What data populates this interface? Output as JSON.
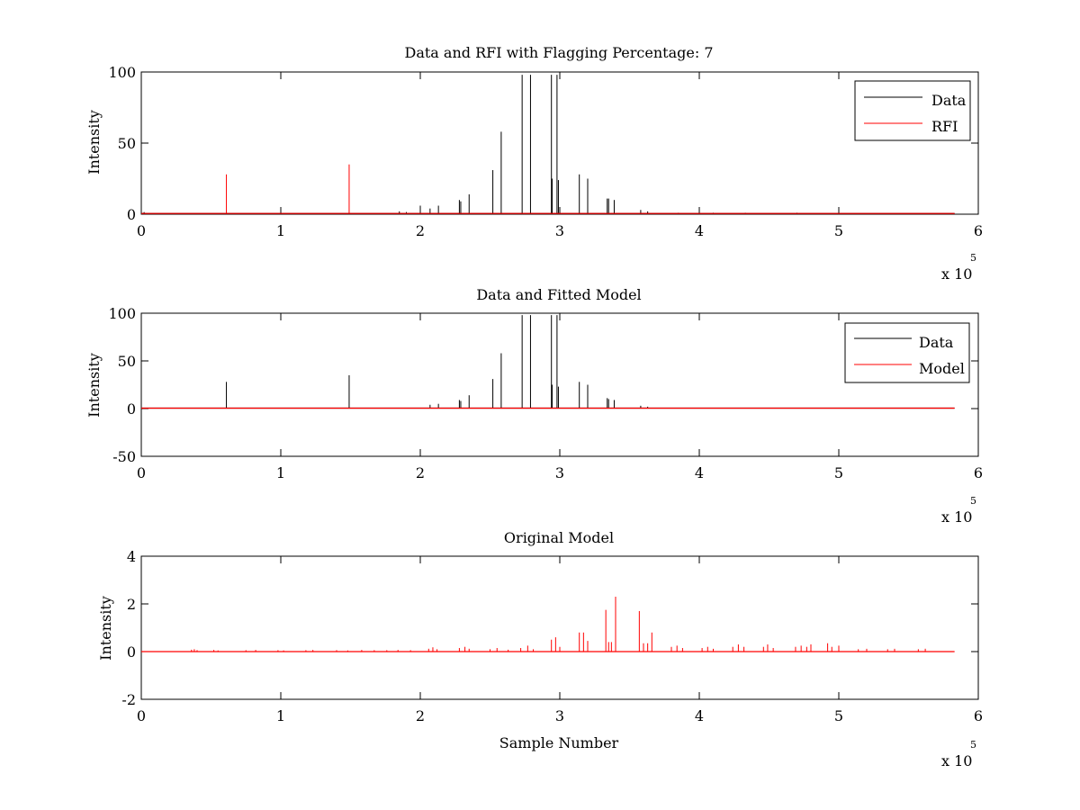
{
  "chart_data": [
    {
      "type": "line",
      "title": "Data and RFI with Flagging Percentage: 7",
      "xlabel": "",
      "ylabel": "Intensity",
      "xlim": [
        0,
        600000
      ],
      "ylim": [
        0,
        100
      ],
      "xticks": [
        0,
        100000,
        200000,
        300000,
        400000,
        500000,
        600000
      ],
      "xtick_labels": [
        "0",
        "1",
        "2",
        "3",
        "4",
        "5",
        "6"
      ],
      "yticks": [
        0,
        50,
        100
      ],
      "ytick_labels": [
        "0",
        "50",
        "100"
      ],
      "x_exponent": {
        "base": "x 10",
        "power": "5"
      },
      "grid": false,
      "legend": "top-right",
      "series": [
        {
          "name": "Data",
          "color": "#000000",
          "baseline": 0.5,
          "x_max": 583000,
          "spikes": [
            [
              2000,
              1.5
            ],
            [
              100000,
              5
            ],
            [
              185000,
              2
            ],
            [
              190000,
              1.5
            ],
            [
              200000,
              6
            ],
            [
              207000,
              4
            ],
            [
              213000,
              6
            ],
            [
              228000,
              10
            ],
            [
              229000,
              9
            ],
            [
              235000,
              14
            ],
            [
              252000,
              31
            ],
            [
              258000,
              58
            ],
            [
              273000,
              98
            ],
            [
              279000,
              98
            ],
            [
              294000,
              98
            ],
            [
              294500,
              25
            ],
            [
              298000,
              98
            ],
            [
              299000,
              24
            ],
            [
              314000,
              28
            ],
            [
              320000,
              25
            ],
            [
              334000,
              11
            ],
            [
              335000,
              11
            ],
            [
              339000,
              10
            ],
            [
              358000,
              3
            ],
            [
              363000,
              2
            ],
            [
              385000,
              1
            ],
            [
              410000,
              1
            ],
            [
              433000,
              1
            ],
            [
              470000,
              1
            ]
          ]
        },
        {
          "name": "RFI",
          "color": "#ff0000",
          "baseline": 0.5,
          "x_max": 583000,
          "spikes": [
            [
              61000,
              28
            ],
            [
              149000,
              35
            ]
          ]
        }
      ]
    },
    {
      "type": "line",
      "title": "Data and Fitted Model",
      "xlabel": "",
      "ylabel": "Intensity",
      "xlim": [
        0,
        600000
      ],
      "ylim": [
        -50,
        100
      ],
      "xticks": [
        0,
        100000,
        200000,
        300000,
        400000,
        500000,
        600000
      ],
      "xtick_labels": [
        "0",
        "1",
        "2",
        "3",
        "4",
        "5",
        "6"
      ],
      "yticks": [
        -50,
        0,
        50,
        100
      ],
      "ytick_labels": [
        "-50",
        "0",
        "50",
        "100"
      ],
      "x_exponent": {
        "base": "x 10",
        "power": "5"
      },
      "grid": false,
      "legend": "top-right",
      "series": [
        {
          "name": "Data",
          "color": "#000000",
          "baseline": 0.5,
          "x_max": 583000,
          "spikes": [
            [
              61000,
              28
            ],
            [
              149000,
              35
            ],
            [
              207000,
              4
            ],
            [
              213000,
              5
            ],
            [
              228000,
              9
            ],
            [
              229000,
              8
            ],
            [
              235000,
              14
            ],
            [
              252000,
              31
            ],
            [
              258000,
              58
            ],
            [
              273000,
              98
            ],
            [
              279000,
              98
            ],
            [
              294000,
              98
            ],
            [
              294500,
              25
            ],
            [
              298000,
              98
            ],
            [
              299000,
              23
            ],
            [
              314000,
              28
            ],
            [
              320000,
              25
            ],
            [
              334000,
              11
            ],
            [
              335000,
              10
            ],
            [
              339000,
              9
            ],
            [
              358000,
              3
            ],
            [
              363000,
              2
            ]
          ]
        },
        {
          "name": "Model",
          "color": "#ff0000",
          "baseline": 0.5,
          "x_max": 583000,
          "spikes": []
        }
      ]
    },
    {
      "type": "line",
      "title": "Original Model",
      "xlabel": "Sample Number",
      "ylabel": "Intensity",
      "xlim": [
        0,
        600000
      ],
      "ylim": [
        -2,
        4
      ],
      "xticks": [
        0,
        100000,
        200000,
        300000,
        400000,
        500000,
        600000
      ],
      "xtick_labels": [
        "0",
        "1",
        "2",
        "3",
        "4",
        "5",
        "6"
      ],
      "yticks": [
        -2,
        0,
        2,
        4
      ],
      "ytick_labels": [
        "-2",
        "0",
        "2",
        "4"
      ],
      "x_exponent": {
        "base": "x 10",
        "power": "5"
      },
      "grid": false,
      "legend": "none",
      "series": [
        {
          "color": "#ff0000",
          "baseline": 0.0,
          "x_max": 583000,
          "spikes": [
            [
              36000,
              0.08
            ],
            [
              38000,
              0.1
            ],
            [
              40000,
              0.06
            ],
            [
              52000,
              0.07
            ],
            [
              55000,
              0.05
            ],
            [
              75000,
              0.06
            ],
            [
              82000,
              0.07
            ],
            [
              98000,
              0.06
            ],
            [
              102000,
              0.05
            ],
            [
              118000,
              0.06
            ],
            [
              123000,
              0.07
            ],
            [
              140000,
              0.06
            ],
            [
              148000,
              0.05
            ],
            [
              158000,
              0.07
            ],
            [
              167000,
              0.06
            ],
            [
              176000,
              0.06
            ],
            [
              184000,
              0.07
            ],
            [
              193000,
              0.06
            ],
            [
              206000,
              0.12
            ],
            [
              209000,
              0.18
            ],
            [
              212000,
              0.1
            ],
            [
              228000,
              0.15
            ],
            [
              232000,
              0.2
            ],
            [
              235000,
              0.12
            ],
            [
              250000,
              0.1
            ],
            [
              255000,
              0.15
            ],
            [
              263000,
              0.08
            ],
            [
              272000,
              0.15
            ],
            [
              277000,
              0.25
            ],
            [
              281000,
              0.1
            ],
            [
              294000,
              0.5
            ],
            [
              297000,
              0.6
            ],
            [
              300000,
              0.2
            ],
            [
              314000,
              0.8
            ],
            [
              317000,
              0.8
            ],
            [
              320000,
              0.45
            ],
            [
              333000,
              1.75
            ],
            [
              335000,
              0.4
            ],
            [
              337000,
              0.4
            ],
            [
              340000,
              2.3
            ],
            [
              357000,
              1.7
            ],
            [
              360000,
              0.35
            ],
            [
              363000,
              0.35
            ],
            [
              366000,
              0.8
            ],
            [
              380000,
              0.2
            ],
            [
              384000,
              0.25
            ],
            [
              388000,
              0.15
            ],
            [
              402000,
              0.15
            ],
            [
              406000,
              0.2
            ],
            [
              410000,
              0.12
            ],
            [
              424000,
              0.2
            ],
            [
              428000,
              0.3
            ],
            [
              432000,
              0.2
            ],
            [
              446000,
              0.2
            ],
            [
              449000,
              0.3
            ],
            [
              453000,
              0.15
            ],
            [
              469000,
              0.2
            ],
            [
              473000,
              0.25
            ],
            [
              477000,
              0.2
            ],
            [
              480000,
              0.3
            ],
            [
              492000,
              0.35
            ],
            [
              495000,
              0.2
            ],
            [
              500000,
              0.25
            ],
            [
              514000,
              0.1
            ],
            [
              520000,
              0.12
            ],
            [
              535000,
              0.1
            ],
            [
              540000,
              0.12
            ],
            [
              557000,
              0.1
            ],
            [
              562000,
              0.12
            ]
          ]
        }
      ]
    }
  ]
}
